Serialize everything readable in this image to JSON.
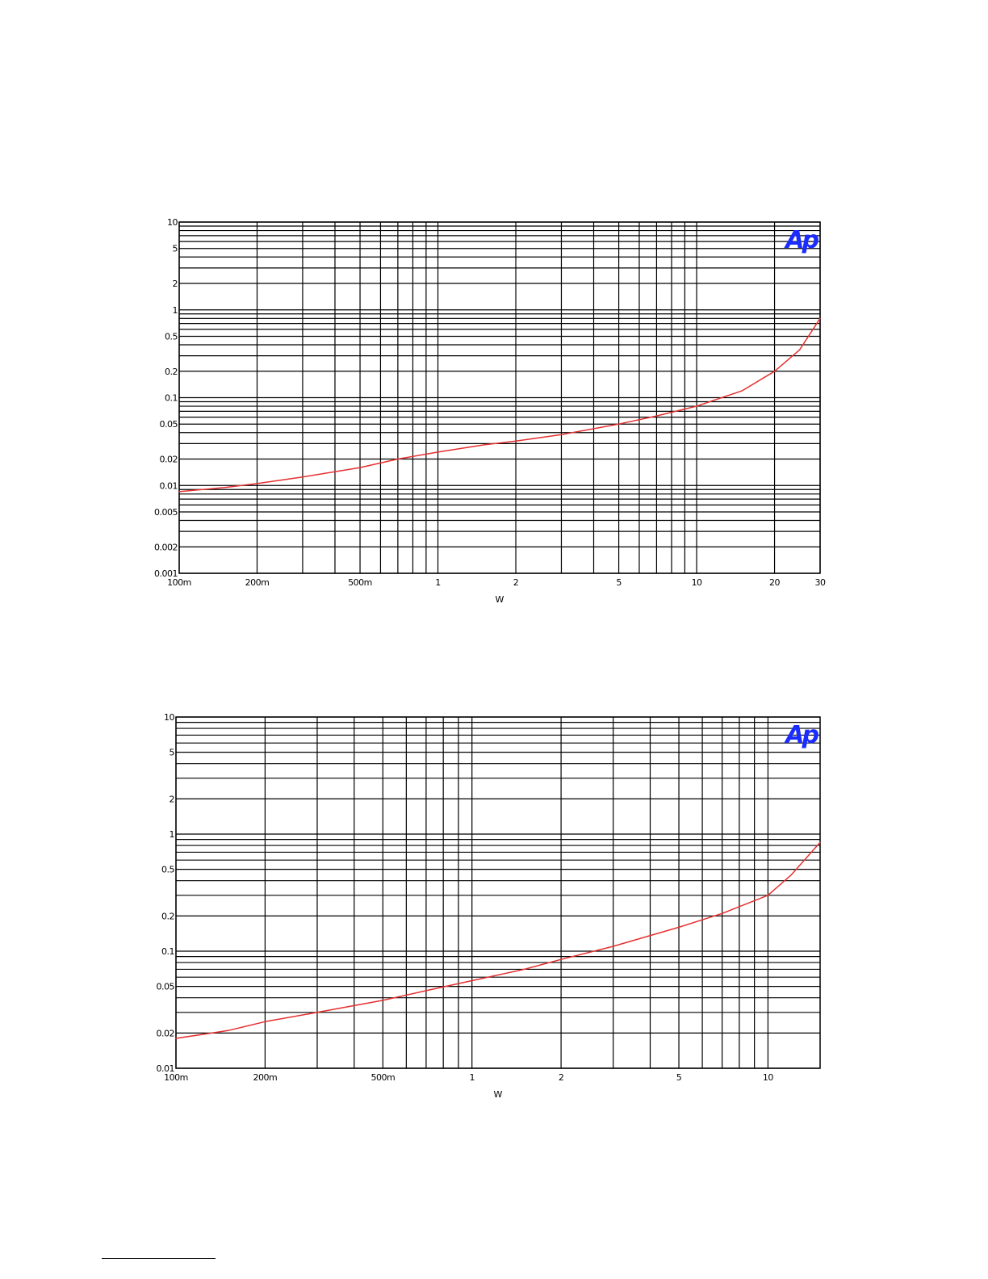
{
  "page": {
    "background": "#ffffff"
  },
  "style": {
    "grid_color": "#000000",
    "line_color": "#e53030",
    "logo_color": "#1a2cff"
  },
  "chart_data": [
    {
      "type": "line",
      "xscale": "log",
      "yscale": "log",
      "xlim": [
        0.1,
        30
      ],
      "ylim": [
        0.001,
        10
      ],
      "grid": true,
      "xlabel": "W",
      "ylabel": "",
      "logo": "Ap",
      "x_ticks": [
        {
          "value": 0.1,
          "label": "100m"
        },
        {
          "value": 0.2,
          "label": "200m"
        },
        {
          "value": 0.5,
          "label": "500m"
        },
        {
          "value": 1,
          "label": "1"
        },
        {
          "value": 2,
          "label": "2"
        },
        {
          "value": 5,
          "label": "5"
        },
        {
          "value": 10,
          "label": "10"
        },
        {
          "value": 20,
          "label": "20"
        },
        {
          "value": 30,
          "label": "30"
        }
      ],
      "y_ticks": [
        {
          "value": 10,
          "label": "10"
        },
        {
          "value": 5,
          "label": "5"
        },
        {
          "value": 2,
          "label": "2"
        },
        {
          "value": 1,
          "label": "1"
        },
        {
          "value": 0.5,
          "label": "0.5"
        },
        {
          "value": 0.2,
          "label": "0.2"
        },
        {
          "value": 0.1,
          "label": "0.1"
        },
        {
          "value": 0.05,
          "label": "0.05"
        },
        {
          "value": 0.02,
          "label": "0.02"
        },
        {
          "value": 0.01,
          "label": "0.01"
        },
        {
          "value": 0.005,
          "label": "0.005"
        },
        {
          "value": 0.002,
          "label": "0.002"
        },
        {
          "value": 0.001,
          "label": "0.001"
        }
      ],
      "series": [
        {
          "points": [
            [
              0.1,
              0.0085
            ],
            [
              0.15,
              0.0095
            ],
            [
              0.2,
              0.0105
            ],
            [
              0.3,
              0.0125
            ],
            [
              0.5,
              0.016
            ],
            [
              0.7,
              0.02
            ],
            [
              1,
              0.024
            ],
            [
              1.5,
              0.029
            ],
            [
              2,
              0.032
            ],
            [
              3,
              0.038
            ],
            [
              5,
              0.05
            ],
            [
              7,
              0.062
            ],
            [
              10,
              0.08
            ],
            [
              15,
              0.12
            ],
            [
              20,
              0.2
            ],
            [
              25,
              0.35
            ],
            [
              30,
              0.8
            ]
          ]
        }
      ]
    },
    {
      "type": "line",
      "xscale": "log",
      "yscale": "log",
      "xlim": [
        0.1,
        15
      ],
      "ylim": [
        0.01,
        10
      ],
      "grid": true,
      "xlabel": "W",
      "ylabel": "",
      "logo": "Ap",
      "x_ticks": [
        {
          "value": 0.1,
          "label": "100m"
        },
        {
          "value": 0.2,
          "label": "200m"
        },
        {
          "value": 0.5,
          "label": "500m"
        },
        {
          "value": 1,
          "label": "1"
        },
        {
          "value": 2,
          "label": "2"
        },
        {
          "value": 5,
          "label": "5"
        },
        {
          "value": 10,
          "label": "10"
        }
      ],
      "y_ticks": [
        {
          "value": 10,
          "label": "10"
        },
        {
          "value": 5,
          "label": "5"
        },
        {
          "value": 2,
          "label": "2"
        },
        {
          "value": 1,
          "label": "1"
        },
        {
          "value": 0.5,
          "label": "0.5"
        },
        {
          "value": 0.2,
          "label": "0.2"
        },
        {
          "value": 0.1,
          "label": "0.1"
        },
        {
          "value": 0.05,
          "label": "0.05"
        },
        {
          "value": 0.02,
          "label": "0.02"
        },
        {
          "value": 0.01,
          "label": "0.01"
        }
      ],
      "series": [
        {
          "points": [
            [
              0.1,
              0.018
            ],
            [
              0.15,
              0.021
            ],
            [
              0.2,
              0.025
            ],
            [
              0.3,
              0.03
            ],
            [
              0.5,
              0.038
            ],
            [
              0.7,
              0.046
            ],
            [
              1,
              0.056
            ],
            [
              1.5,
              0.07
            ],
            [
              2,
              0.085
            ],
            [
              3,
              0.11
            ],
            [
              5,
              0.16
            ],
            [
              7,
              0.21
            ],
            [
              10,
              0.3
            ],
            [
              12,
              0.45
            ],
            [
              15,
              0.85
            ]
          ]
        }
      ]
    }
  ]
}
